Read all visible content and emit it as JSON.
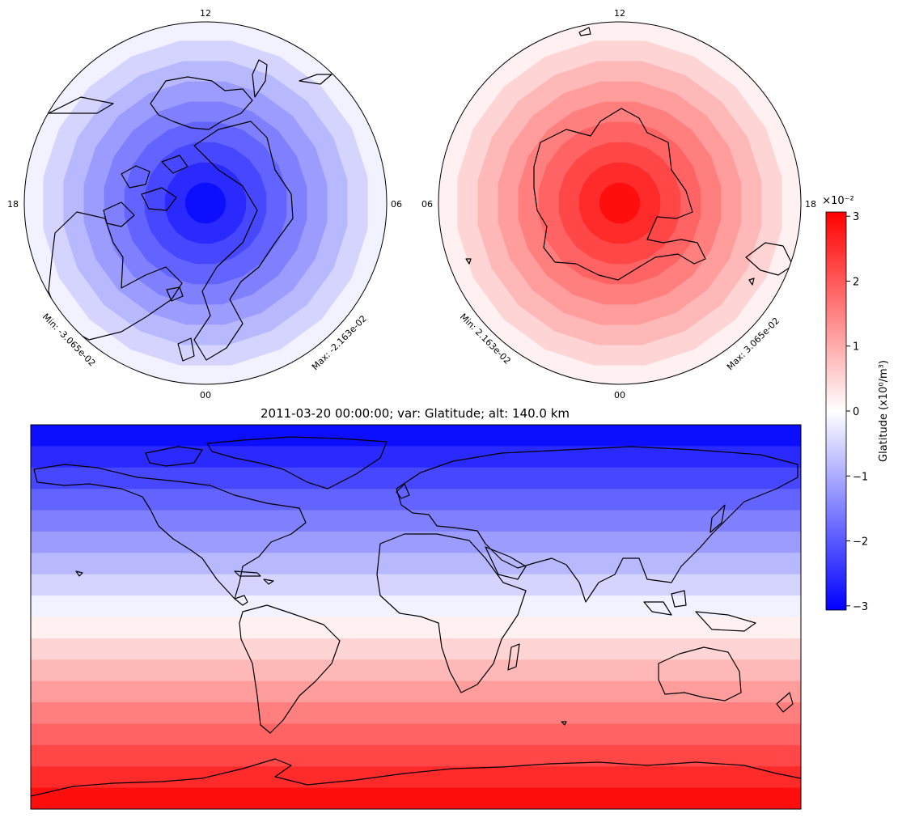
{
  "title": "2011-03-20 00:00:00; var: Glatitude; alt: 140.0 km",
  "colorbar": {
    "label": "Glatitude (x10⁰/m³)",
    "exponent": "×10⁻²",
    "min": -3.065,
    "max": 3.065,
    "ticks": [
      "3",
      "2",
      "1",
      "0",
      "−1",
      "−2",
      "−3"
    ],
    "colormap": "bwr"
  },
  "north_polar": {
    "hemisphere": "north",
    "labels": {
      "top": "12",
      "left": "18",
      "right": "06",
      "bottom": "00"
    },
    "min_label": "Min: -3.065e-02",
    "max_label": "Max: -2.163e-02"
  },
  "south_polar": {
    "hemisphere": "south",
    "labels": {
      "top": "12",
      "left": "06",
      "right": "18",
      "bottom": "00"
    },
    "min_label": "Min: 2.163e-02",
    "max_label": "Max: 3.065e-02"
  },
  "chart_data": {
    "type": "heatmap",
    "title": "2011-03-20 00:00:00; var: Glatitude; alt: 140.0 km",
    "variable": "Glatitude",
    "altitude_km": 140.0,
    "latitude_range": [
      -90,
      90
    ],
    "longitude_range": [
      -180,
      180
    ],
    "value_range": [
      -0.03065,
      0.03065
    ],
    "description_of_field": "values decrease linearly with latitude: red at south pole, white at equator, blue at north pole"
  },
  "colors": {
    "blue": "#0000ff",
    "white": "#ffffff",
    "red": "#ff0000"
  }
}
